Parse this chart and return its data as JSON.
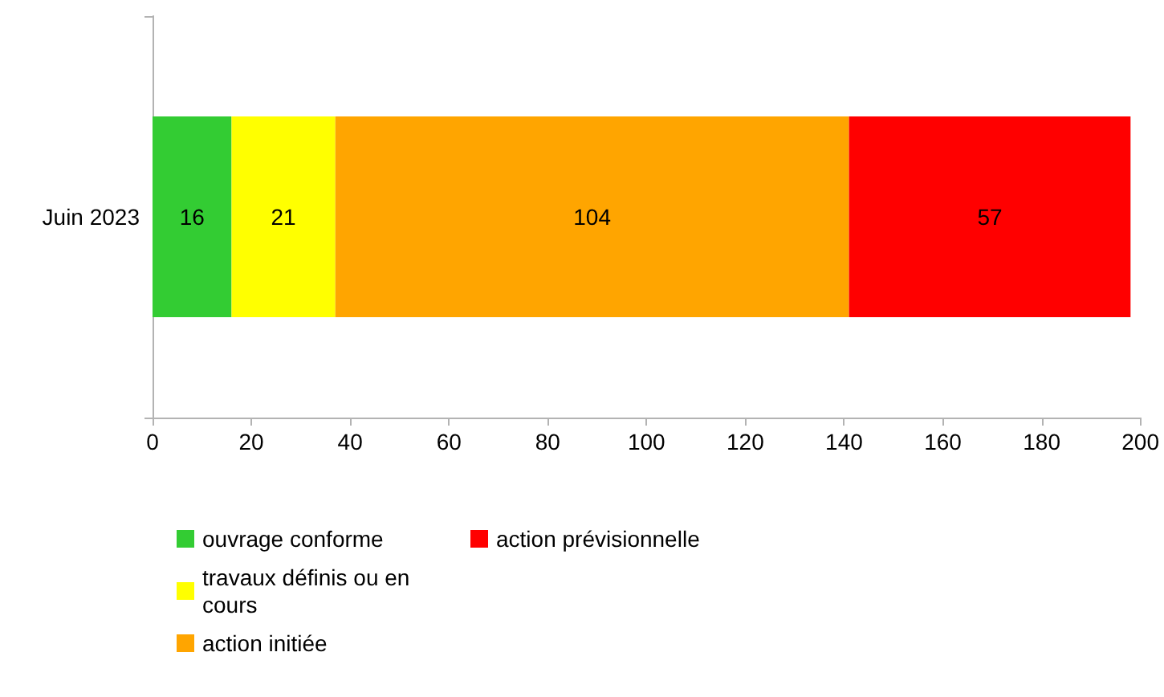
{
  "chart_data": {
    "type": "bar",
    "orientation": "horizontal",
    "stacked": true,
    "categories": [
      "Juin 2023"
    ],
    "series": [
      {
        "name": "ouvrage conforme",
        "color": "#33cc33",
        "values": [
          16
        ]
      },
      {
        "name": "travaux définis ou en cours",
        "color": "#ffff00",
        "values": [
          21
        ]
      },
      {
        "name": "action initiée",
        "color": "#ffa500",
        "values": [
          104
        ]
      },
      {
        "name": "action prévisionnelle",
        "color": "#ff0000",
        "values": [
          57
        ]
      }
    ],
    "xlim": [
      0,
      200
    ],
    "xticks": [
      0,
      20,
      40,
      60,
      80,
      100,
      120,
      140,
      160,
      180,
      200
    ],
    "data_labels": true,
    "grid": false,
    "legend": "bottom left"
  }
}
